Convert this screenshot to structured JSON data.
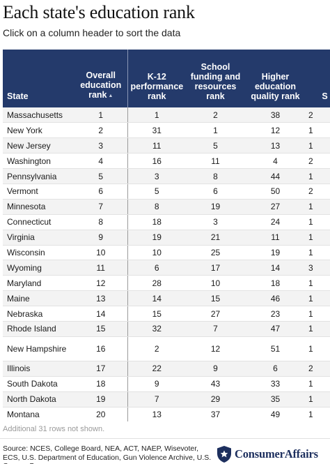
{
  "title": "Each state's education rank",
  "subtitle": "Click on a column header to sort the data",
  "table": {
    "headers": [
      "State",
      "Overall education rank",
      "K-12 performance rank",
      "School funding and resources rank",
      "Higher education quality rank",
      "S"
    ],
    "sort_icon": "sort-ascending-icon",
    "rows": [
      [
        "Massachusetts",
        "1",
        "1",
        "2",
        "38",
        "2"
      ],
      [
        "New York",
        "2",
        "31",
        "1",
        "12",
        "1"
      ],
      [
        "New Jersey",
        "3",
        "11",
        "5",
        "13",
        "1"
      ],
      [
        "Washington",
        "4",
        "16",
        "11",
        "4",
        "2"
      ],
      [
        "Pennsylvania",
        "5",
        "3",
        "8",
        "44",
        "1"
      ],
      [
        "Vermont",
        "6",
        "5",
        "6",
        "50",
        "2"
      ],
      [
        "Minnesota",
        "7",
        "8",
        "19",
        "27",
        "1"
      ],
      [
        "Connecticut",
        "8",
        "18",
        "3",
        "24",
        "1"
      ],
      [
        "Virginia",
        "9",
        "19",
        "21",
        "11",
        "1"
      ],
      [
        "Wisconsin",
        "10",
        "10",
        "25",
        "19",
        "1"
      ],
      [
        "Wyoming",
        "11",
        "6",
        "17",
        "14",
        "3"
      ],
      [
        "Maryland",
        "12",
        "28",
        "10",
        "18",
        "1"
      ],
      [
        "Maine",
        "13",
        "14",
        "15",
        "46",
        "1"
      ],
      [
        "Nebraska",
        "14",
        "15",
        "27",
        "23",
        "1"
      ],
      [
        "Rhode Island",
        "15",
        "32",
        "7",
        "47",
        "1"
      ],
      [
        "New Hampshire",
        "16",
        "2",
        "12",
        "51",
        "1"
      ],
      [
        "Illinois",
        "17",
        "22",
        "9",
        "6",
        "2"
      ],
      [
        "South Dakota",
        "18",
        "9",
        "43",
        "33",
        "1"
      ],
      [
        "North Dakota",
        "19",
        "7",
        "29",
        "35",
        "1"
      ],
      [
        "Montana",
        "20",
        "13",
        "37",
        "49",
        "1"
      ]
    ]
  },
  "note": "Additional 31 rows not shown.",
  "source": "Source: NCES, College Board, NEA, ACT, NAEP, Wisevoter, ECS, U.S. Department of Education, Gun Violence Archive, U.S. Census Bureau",
  "brand": {
    "name": "ConsumerAffairs",
    "icon": "shield-star-icon",
    "color": "#1d2f5e"
  },
  "colors": {
    "header_bg": "#243a6b",
    "header_text": "#ffffff",
    "stripe": "#f3f3f3"
  }
}
